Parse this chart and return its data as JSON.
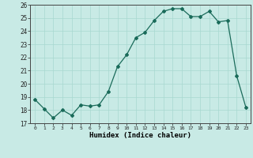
{
  "x": [
    0,
    1,
    2,
    3,
    4,
    5,
    6,
    7,
    8,
    9,
    10,
    11,
    12,
    13,
    14,
    15,
    16,
    17,
    18,
    19,
    20,
    21,
    22,
    23
  ],
  "y": [
    18.8,
    18.1,
    17.4,
    18.0,
    17.6,
    18.4,
    18.3,
    18.4,
    19.4,
    21.3,
    22.2,
    23.5,
    23.9,
    24.8,
    25.5,
    25.7,
    25.7,
    25.1,
    25.1,
    25.5,
    24.7,
    24.8,
    20.6,
    18.2
  ],
  "xlabel": "Humidex (Indice chaleur)",
  "ylim": [
    17,
    26
  ],
  "yticks": [
    17,
    18,
    19,
    20,
    21,
    22,
    23,
    24,
    25,
    26
  ],
  "xlim": [
    -0.5,
    23.5
  ],
  "bg_color": "#c8eae5",
  "line_color": "#1a6b5a",
  "grid_color": "#a8d8d0",
  "label_color": "#000000",
  "figwidth": 3.2,
  "figheight": 2.0,
  "dpi": 100
}
